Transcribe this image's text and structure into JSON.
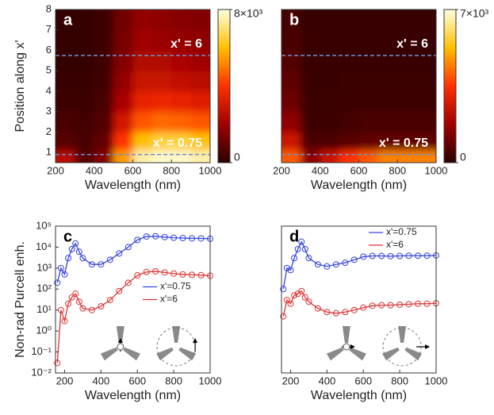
{
  "chart_data": [
    {
      "type": "heatmap",
      "panel_label": "a",
      "xlabel": "Wavelength (nm)",
      "ylabel": "Position along x'",
      "xlim": [
        200,
        1000
      ],
      "ylim": [
        0.5,
        8
      ],
      "xticks": [
        200,
        400,
        600,
        800,
        1000
      ],
      "yticks": [
        1,
        2,
        3,
        4,
        5,
        6,
        7,
        8
      ],
      "x": [
        250,
        350,
        450,
        550,
        650,
        750,
        850,
        950
      ],
      "y": [
        0.75,
        1.5,
        2.5,
        3.5,
        4.5,
        5.5,
        6.5,
        7.5
      ],
      "z": [
        [
          2500,
          800,
          1500,
          5500,
          7500,
          7800,
          7800,
          7500
        ],
        [
          800,
          500,
          1000,
          4000,
          6000,
          6500,
          6500,
          6000
        ],
        [
          500,
          400,
          700,
          3000,
          4500,
          4800,
          4700,
          4500
        ],
        [
          300,
          300,
          500,
          2200,
          3500,
          3600,
          3500,
          3300
        ],
        [
          250,
          250,
          400,
          1800,
          2800,
          2800,
          2700,
          2500
        ],
        [
          200,
          200,
          350,
          1500,
          2300,
          2300,
          2200,
          2000
        ],
        [
          200,
          200,
          300,
          1300,
          2000,
          1900,
          1800,
          1700
        ],
        [
          200,
          200,
          300,
          1200,
          1800,
          1700,
          1600,
          1500
        ]
      ],
      "zlim": [
        0,
        8000
      ],
      "cbar_ticks": [
        {
          "value": 8000,
          "label": "8×10³"
        },
        0
      ],
      "colormap": [
        "#2a0000",
        "#a00000",
        "#ff3000",
        "#ffc000",
        "#ffffe0"
      ],
      "hlines": [
        {
          "value": 5.75,
          "label": "x' = 6"
        },
        {
          "value": 0.9,
          "label": "x' = 0.75"
        }
      ],
      "hline_color": "#7090d0"
    },
    {
      "type": "heatmap",
      "panel_label": "b",
      "xlabel": "Wavelength (nm)",
      "xlim": [
        200,
        1000
      ],
      "ylim": [
        0.5,
        8
      ],
      "xticks": [
        200,
        400,
        600,
        800,
        1000
      ],
      "x": [
        250,
        350,
        450,
        550,
        650,
        750,
        850,
        950
      ],
      "y": [
        0.75,
        1.5,
        2.5,
        3.5,
        4.5,
        5.5,
        6.5,
        7.5
      ],
      "z": [
        [
          4000,
          1500,
          2500,
          3500,
          4000,
          4500,
          4500,
          4500
        ],
        [
          2500,
          500,
          500,
          700,
          800,
          800,
          800,
          800
        ],
        [
          1500,
          300,
          300,
          400,
          450,
          450,
          450,
          450
        ],
        [
          1000,
          250,
          250,
          300,
          300,
          300,
          300,
          300
        ],
        [
          800,
          200,
          200,
          250,
          250,
          250,
          250,
          250
        ],
        [
          600,
          200,
          200,
          200,
          200,
          200,
          200,
          200
        ],
        [
          500,
          200,
          200,
          200,
          200,
          200,
          200,
          200
        ],
        [
          400,
          200,
          200,
          200,
          200,
          200,
          200,
          200
        ]
      ],
      "zlim": [
        0,
        7000
      ],
      "cbar_ticks": [
        {
          "value": 7000,
          "label": "7×10³"
        },
        0
      ],
      "colormap": [
        "#2a0000",
        "#a00000",
        "#ff3000",
        "#ffc000",
        "#ffffe0"
      ],
      "hlines": [
        {
          "value": 5.75,
          "label": "x' = 6"
        },
        {
          "value": 0.9,
          "label": "x' = 0.75"
        }
      ],
      "hline_color": "#7090d0"
    },
    {
      "type": "line",
      "panel_label": "c",
      "xlabel": "Wavelength (nm)",
      "ylabel": "Non-rad Purcell enh.",
      "log_y": true,
      "xlim": [
        150,
        1000
      ],
      "ylim": [
        0.01,
        100000
      ],
      "xticks": [
        200,
        400,
        600,
        800,
        1000
      ],
      "yticks": [
        {
          "value": 0.01,
          "label": "10⁻²"
        },
        {
          "value": 0.1,
          "label": "10⁻¹"
        },
        {
          "value": 1,
          "label": "10⁰"
        },
        {
          "value": 10,
          "label": "10¹"
        },
        {
          "value": 100,
          "label": "10²"
        },
        {
          "value": 1000,
          "label": "10³"
        },
        {
          "value": 10000,
          "label": "10⁴"
        },
        {
          "value": 100000,
          "label": "10⁵"
        }
      ],
      "legend": "center right",
      "x": [
        160,
        180,
        200,
        220,
        240,
        260,
        280,
        300,
        350,
        400,
        450,
        500,
        550,
        600,
        650,
        700,
        750,
        800,
        850,
        900,
        950,
        1000
      ],
      "series": [
        {
          "name": "x'=0.75",
          "color": "#3344dd",
          "values": [
            200,
            1000,
            500,
            3000,
            8000,
            15000,
            6000,
            3000,
            1500,
            1500,
            2500,
            5000,
            10000,
            22000,
            32000,
            33000,
            30000,
            28000,
            27000,
            26000,
            26000,
            25000
          ]
        },
        {
          "name": "x'=6",
          "color": "#dd3333",
          "values": [
            0.03,
            10,
            3,
            20,
            40,
            60,
            25,
            12,
            10,
            15,
            30,
            80,
            200,
            450,
            650,
            700,
            620,
            550,
            500,
            480,
            460,
            430
          ]
        }
      ]
    },
    {
      "type": "line",
      "panel_label": "d",
      "xlabel": "Wavelength (nm)",
      "log_y": true,
      "xlim": [
        150,
        1000
      ],
      "ylim": [
        0.01,
        100000
      ],
      "xticks": [
        200,
        400,
        600,
        800,
        1000
      ],
      "legend": "upper right",
      "x": [
        160,
        180,
        200,
        220,
        240,
        260,
        280,
        300,
        350,
        400,
        450,
        500,
        550,
        600,
        650,
        700,
        750,
        800,
        850,
        900,
        950,
        1000
      ],
      "series": [
        {
          "name": "x'=0.75",
          "color": "#3344dd",
          "values": [
            100,
            1000,
            800,
            3000,
            8000,
            18000,
            8000,
            3000,
            1500,
            1200,
            1500,
            1800,
            2500,
            3500,
            3800,
            3800,
            3700,
            3800,
            3900,
            3900,
            3900,
            4000
          ]
        },
        {
          "name": "x'=6",
          "color": "#dd3333",
          "values": [
            5,
            30,
            20,
            50,
            60,
            80,
            40,
            25,
            12,
            8,
            7,
            8,
            10,
            13,
            16,
            17,
            17,
            18,
            19,
            20,
            20,
            21
          ]
        }
      ]
    }
  ]
}
